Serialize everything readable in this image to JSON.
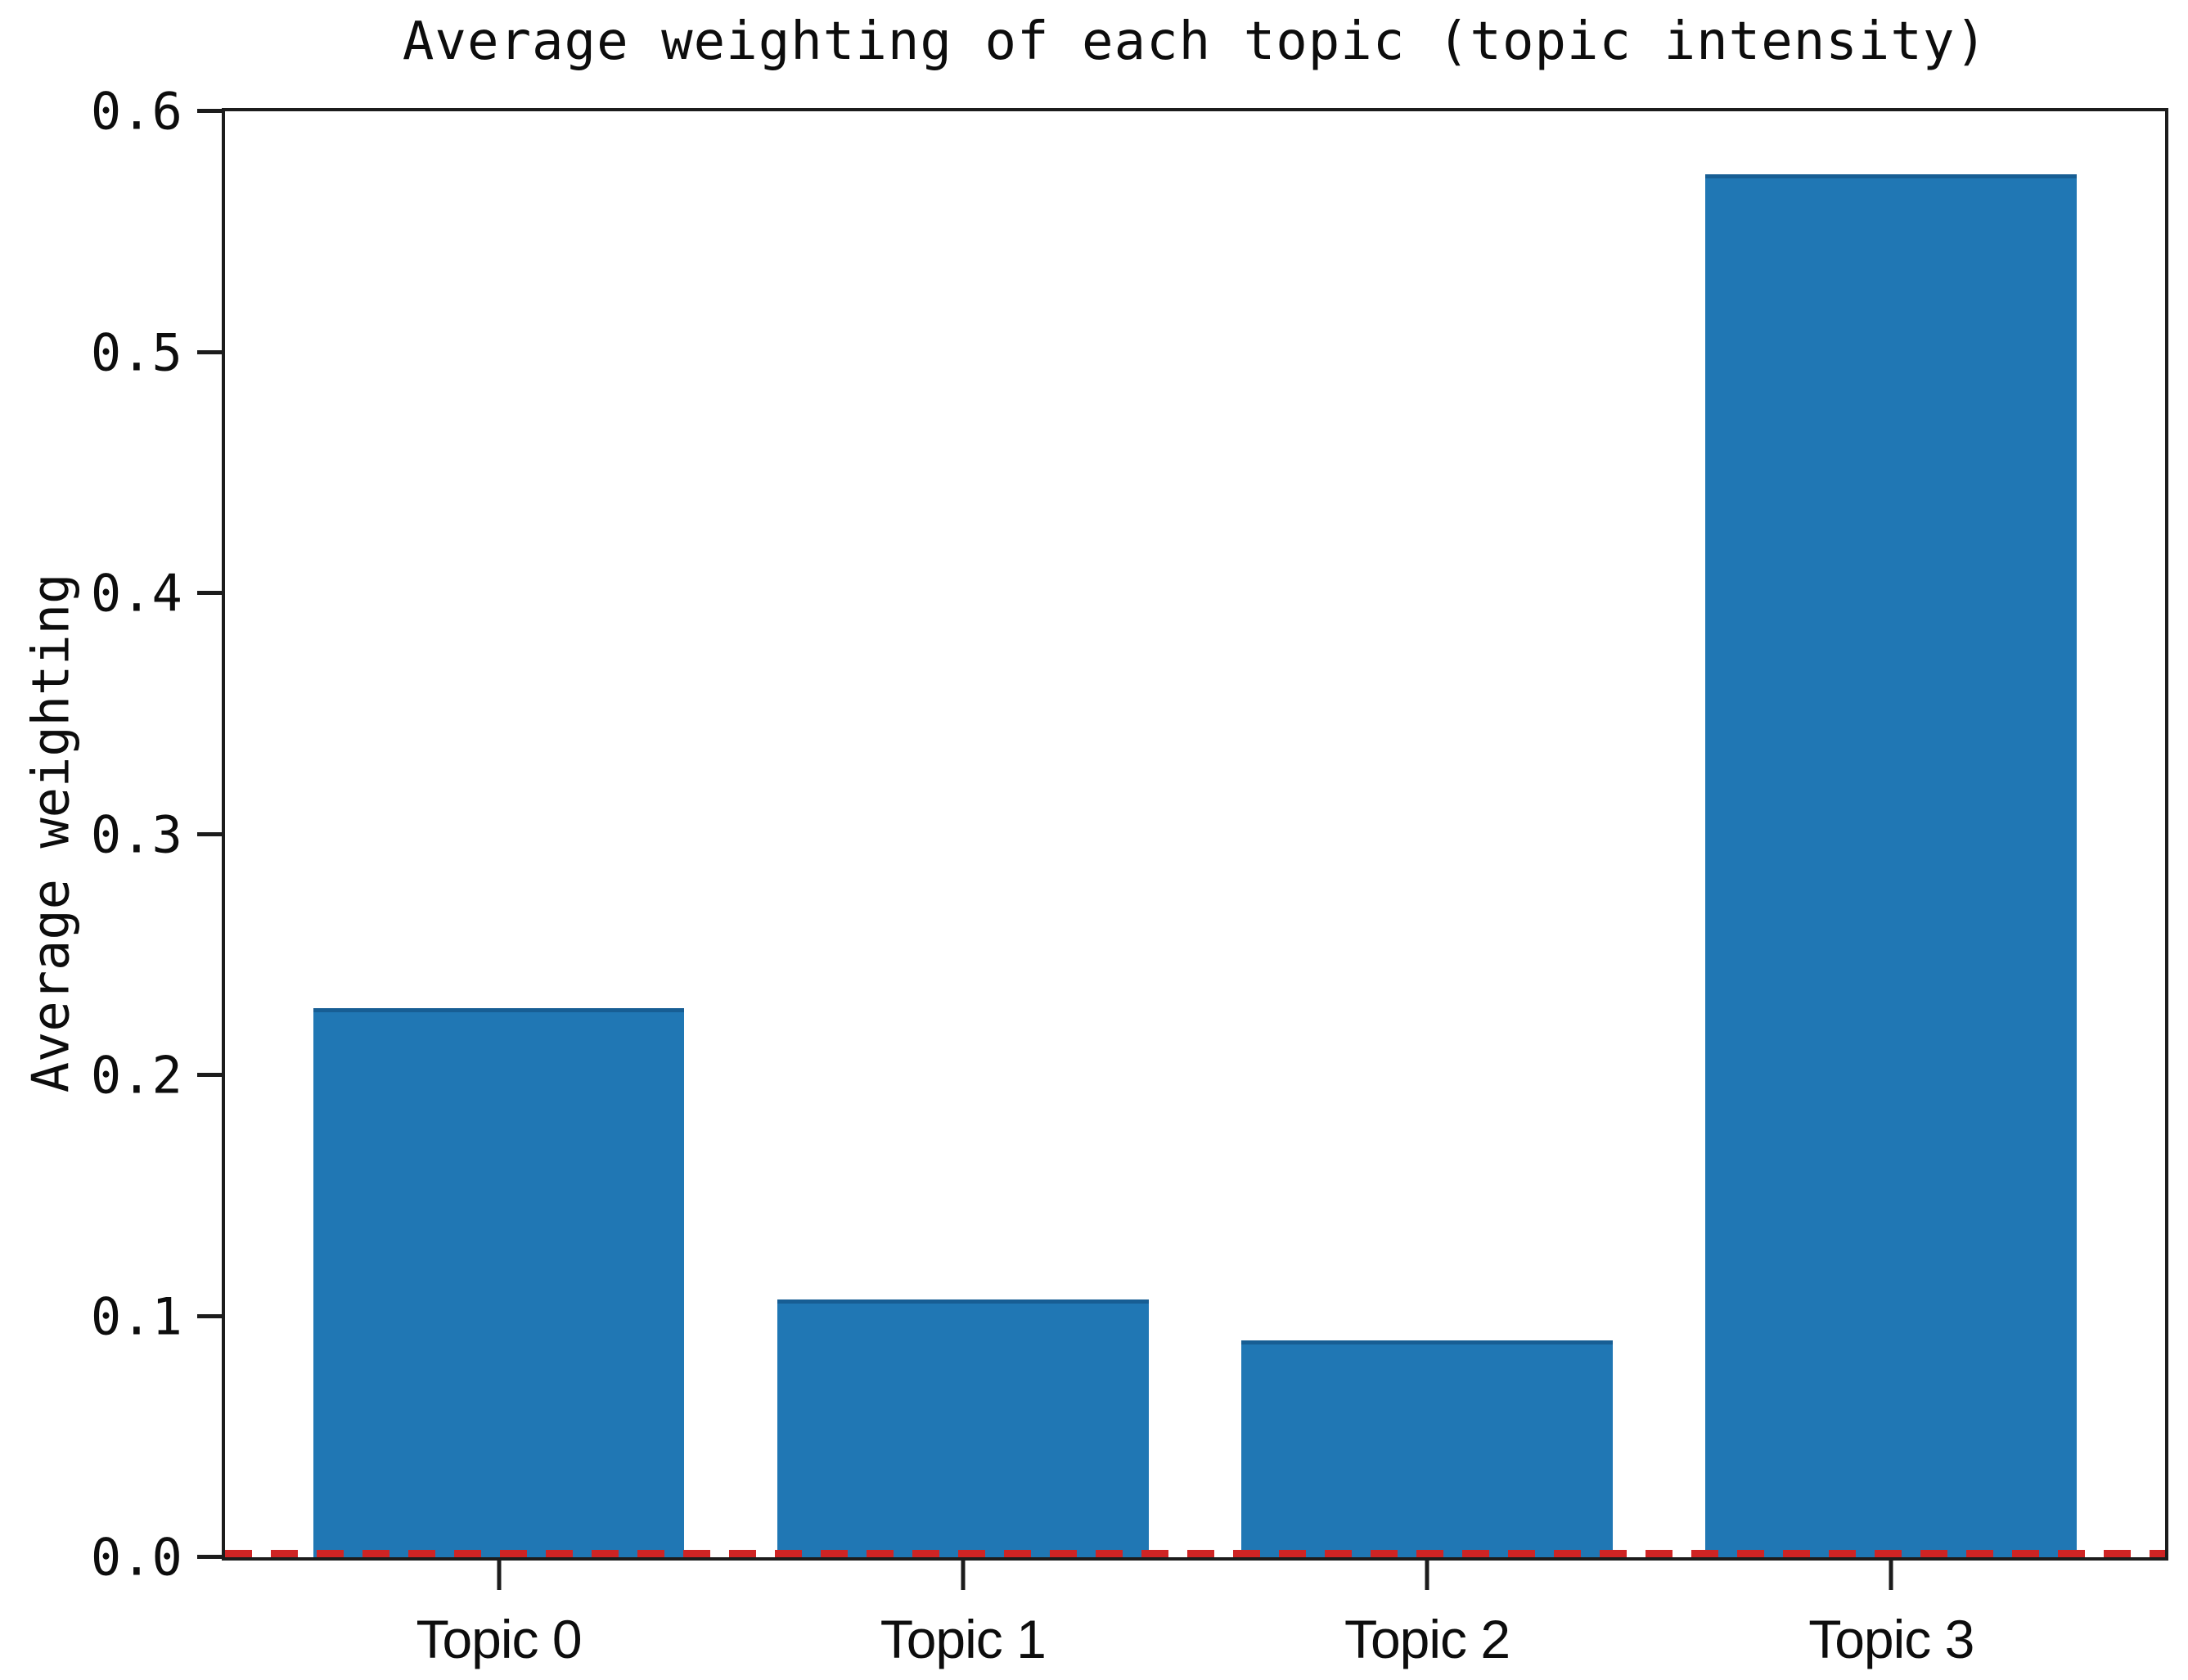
{
  "chart_data": {
    "type": "bar",
    "title": "Average weighting of each topic (topic intensity)",
    "xlabel": "",
    "ylabel": "Average weighting",
    "categories": [
      "Topic 0",
      "Topic 1",
      "Topic 2",
      "Topic 3"
    ],
    "values": [
      0.228,
      0.107,
      0.09,
      0.574
    ],
    "ylim": [
      0.0,
      0.6
    ],
    "yticks": [
      "0.0",
      "0.1",
      "0.2",
      "0.3",
      "0.4",
      "0.5",
      "0.6"
    ],
    "grid": false,
    "legend_position": "none",
    "bar_color": "#2077b4",
    "axis_color": "#1c1c1c",
    "zero_line": {
      "y": 0.0,
      "color": "#cf2424",
      "style": "dashed"
    }
  }
}
